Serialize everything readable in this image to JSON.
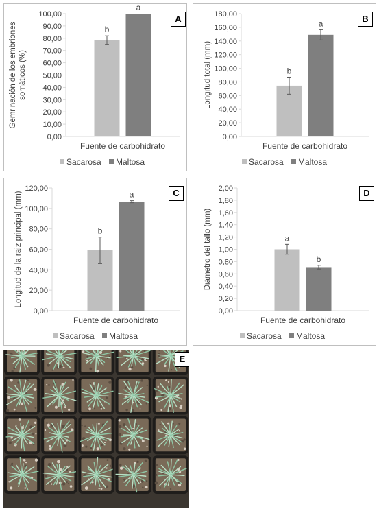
{
  "chart_data": [
    {
      "panel": "A",
      "type": "bar",
      "categories": [
        "Sacarosa",
        "Maltosa"
      ],
      "values": [
        78.5,
        100.0
      ],
      "errors": [
        3.5,
        0.0
      ],
      "significance": [
        "b",
        "a"
      ],
      "xlabel": "Fuente de carbohidrato",
      "ylabel_lines": [
        "Gemrinación de los embriones",
        "somáticos (%)"
      ],
      "ylim": [
        0,
        100
      ],
      "ticks": [
        "0,00",
        "10,00",
        "20,00",
        "30,00",
        "40,00",
        "50,00",
        "60,00",
        "70,00",
        "80,00",
        "90,00",
        "100,00"
      ],
      "legend": [
        "Sacarosa",
        "Maltosa"
      ]
    },
    {
      "panel": "B",
      "type": "bar",
      "categories": [
        "Sacarosa",
        "Maltosa"
      ],
      "values": [
        74.5,
        149.0
      ],
      "errors": [
        12.5,
        7.5
      ],
      "significance": [
        "b",
        "a"
      ],
      "xlabel": "Fuente de carbohidrato",
      "ylabel_lines": [
        "Longitud total (mm)"
      ],
      "ylim": [
        0,
        180
      ],
      "ticks": [
        "0,00",
        "20,00",
        "40,00",
        "60,00",
        "80,00",
        "100,00",
        "120,00",
        "140,00",
        "160,00",
        "180,00"
      ],
      "legend": [
        "Sacarosa",
        "Maltosa"
      ]
    },
    {
      "panel": "C",
      "type": "bar",
      "categories": [
        "Sacarosa",
        "Maltosa"
      ],
      "values": [
        59.0,
        106.5
      ],
      "errors": [
        13.0,
        1.0
      ],
      "significance": [
        "b",
        "a"
      ],
      "xlabel": "Fuente de carbohidrato",
      "ylabel_lines": [
        "Longitud de la raiz principal (mm)"
      ],
      "ylim": [
        0,
        120
      ],
      "ticks": [
        "0,00",
        "20,00",
        "40,00",
        "60,00",
        "80,00",
        "100,00",
        "120,00"
      ],
      "legend": [
        "Sacarosa",
        "Maltosa"
      ]
    },
    {
      "panel": "D",
      "type": "bar",
      "categories": [
        "Sacarosa",
        "Maltosa"
      ],
      "values": [
        1.0,
        0.71
      ],
      "errors": [
        0.08,
        0.03
      ],
      "significance": [
        "a",
        "b"
      ],
      "xlabel": "Fuente de carbohidrato",
      "ylabel_lines": [
        "Diámetro del tallo (mm)"
      ],
      "ylim": [
        0,
        2
      ],
      "ticks": [
        "0,00",
        "0,20",
        "0,40",
        "0,60",
        "0,80",
        "1,00",
        "1,20",
        "1,40",
        "1,60",
        "1,80",
        "2,00"
      ],
      "legend": [
        "Sacarosa",
        "Maltosa"
      ]
    }
  ],
  "colors": {
    "sacarosa": "#bfbfbf",
    "maltosa": "#7f7f7f",
    "axis": "#d9d9d9",
    "text": "#404040"
  },
  "photo": {
    "label": "E"
  }
}
